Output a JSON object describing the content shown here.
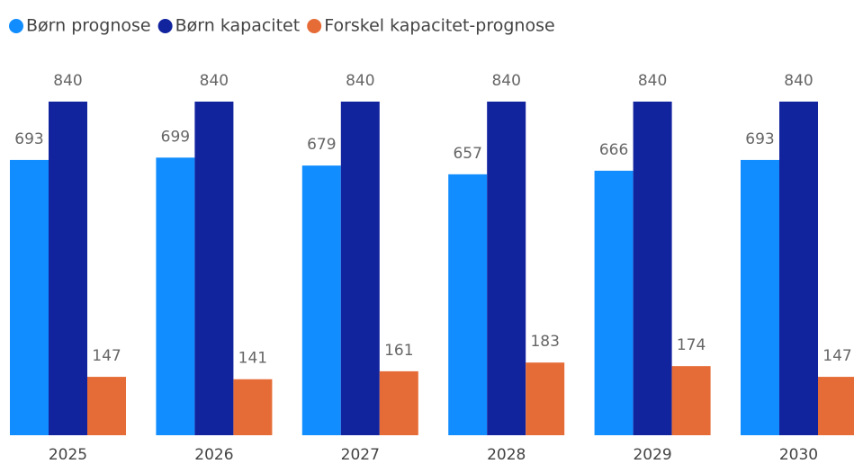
{
  "chart_data": {
    "type": "bar",
    "categories": [
      "2025",
      "2026",
      "2027",
      "2028",
      "2029",
      "2030"
    ],
    "series": [
      {
        "name": "Børn prognose",
        "color": "#118DFF",
        "values": [
          693,
          699,
          679,
          657,
          666,
          693
        ]
      },
      {
        "name": "Børn kapacitet",
        "color": "#12239E",
        "values": [
          840,
          840,
          840,
          840,
          840,
          840
        ]
      },
      {
        "name": "Forskel kapacitet-prognose",
        "color": "#E66C37",
        "values": [
          147,
          141,
          161,
          183,
          174,
          147
        ]
      }
    ],
    "legend": "top-left"
  }
}
